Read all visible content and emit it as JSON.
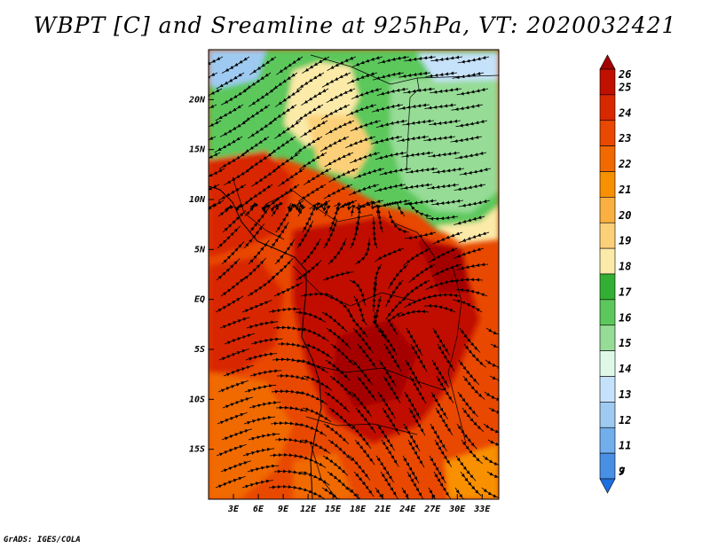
{
  "title": "WBPT [C] and Sreamline at 925hPa, VT: 2020032421",
  "credit": "GrADS: IGES/COLA",
  "map": {
    "lon_range": [
      0,
      35
    ],
    "lat_range": [
      -20,
      25
    ],
    "lon_ticks": [
      {
        "value": 3,
        "label": "3E"
      },
      {
        "value": 6,
        "label": "6E"
      },
      {
        "value": 9,
        "label": "9E"
      },
      {
        "value": 12,
        "label": "12E"
      },
      {
        "value": 15,
        "label": "15E"
      },
      {
        "value": 18,
        "label": "18E"
      },
      {
        "value": 21,
        "label": "21E"
      },
      {
        "value": 24,
        "label": "24E"
      },
      {
        "value": 27,
        "label": "27E"
      },
      {
        "value": 30,
        "label": "30E"
      },
      {
        "value": 33,
        "label": "33E"
      }
    ],
    "lat_ticks": [
      {
        "value": 20,
        "label": "20N"
      },
      {
        "value": 15,
        "label": "15N"
      },
      {
        "value": 10,
        "label": "10N"
      },
      {
        "value": 5,
        "label": "5N"
      },
      {
        "value": 0,
        "label": "EQ"
      },
      {
        "value": -5,
        "label": "5S"
      },
      {
        "value": -10,
        "label": "10S"
      },
      {
        "value": -15,
        "label": "15S"
      }
    ]
  },
  "colorbar": {
    "labels": [
      "26",
      "25",
      "24",
      "23",
      "22",
      "21",
      "20",
      "19",
      "18",
      "17",
      "16",
      "15",
      "14",
      "13",
      "12",
      "11",
      "9",
      "7"
    ],
    "colors": [
      "#a50000",
      "#c01000",
      "#d82800",
      "#e84800",
      "#f06a00",
      "#f89000",
      "#fab040",
      "#fcd078",
      "#fbeaa8",
      "#33b033",
      "#5cc85c",
      "#96dc96",
      "#e0f8e8",
      "#c6e2fa",
      "#9ecaf2",
      "#72aeec",
      "#4890e6",
      "#1f6ee0"
    ]
  }
}
